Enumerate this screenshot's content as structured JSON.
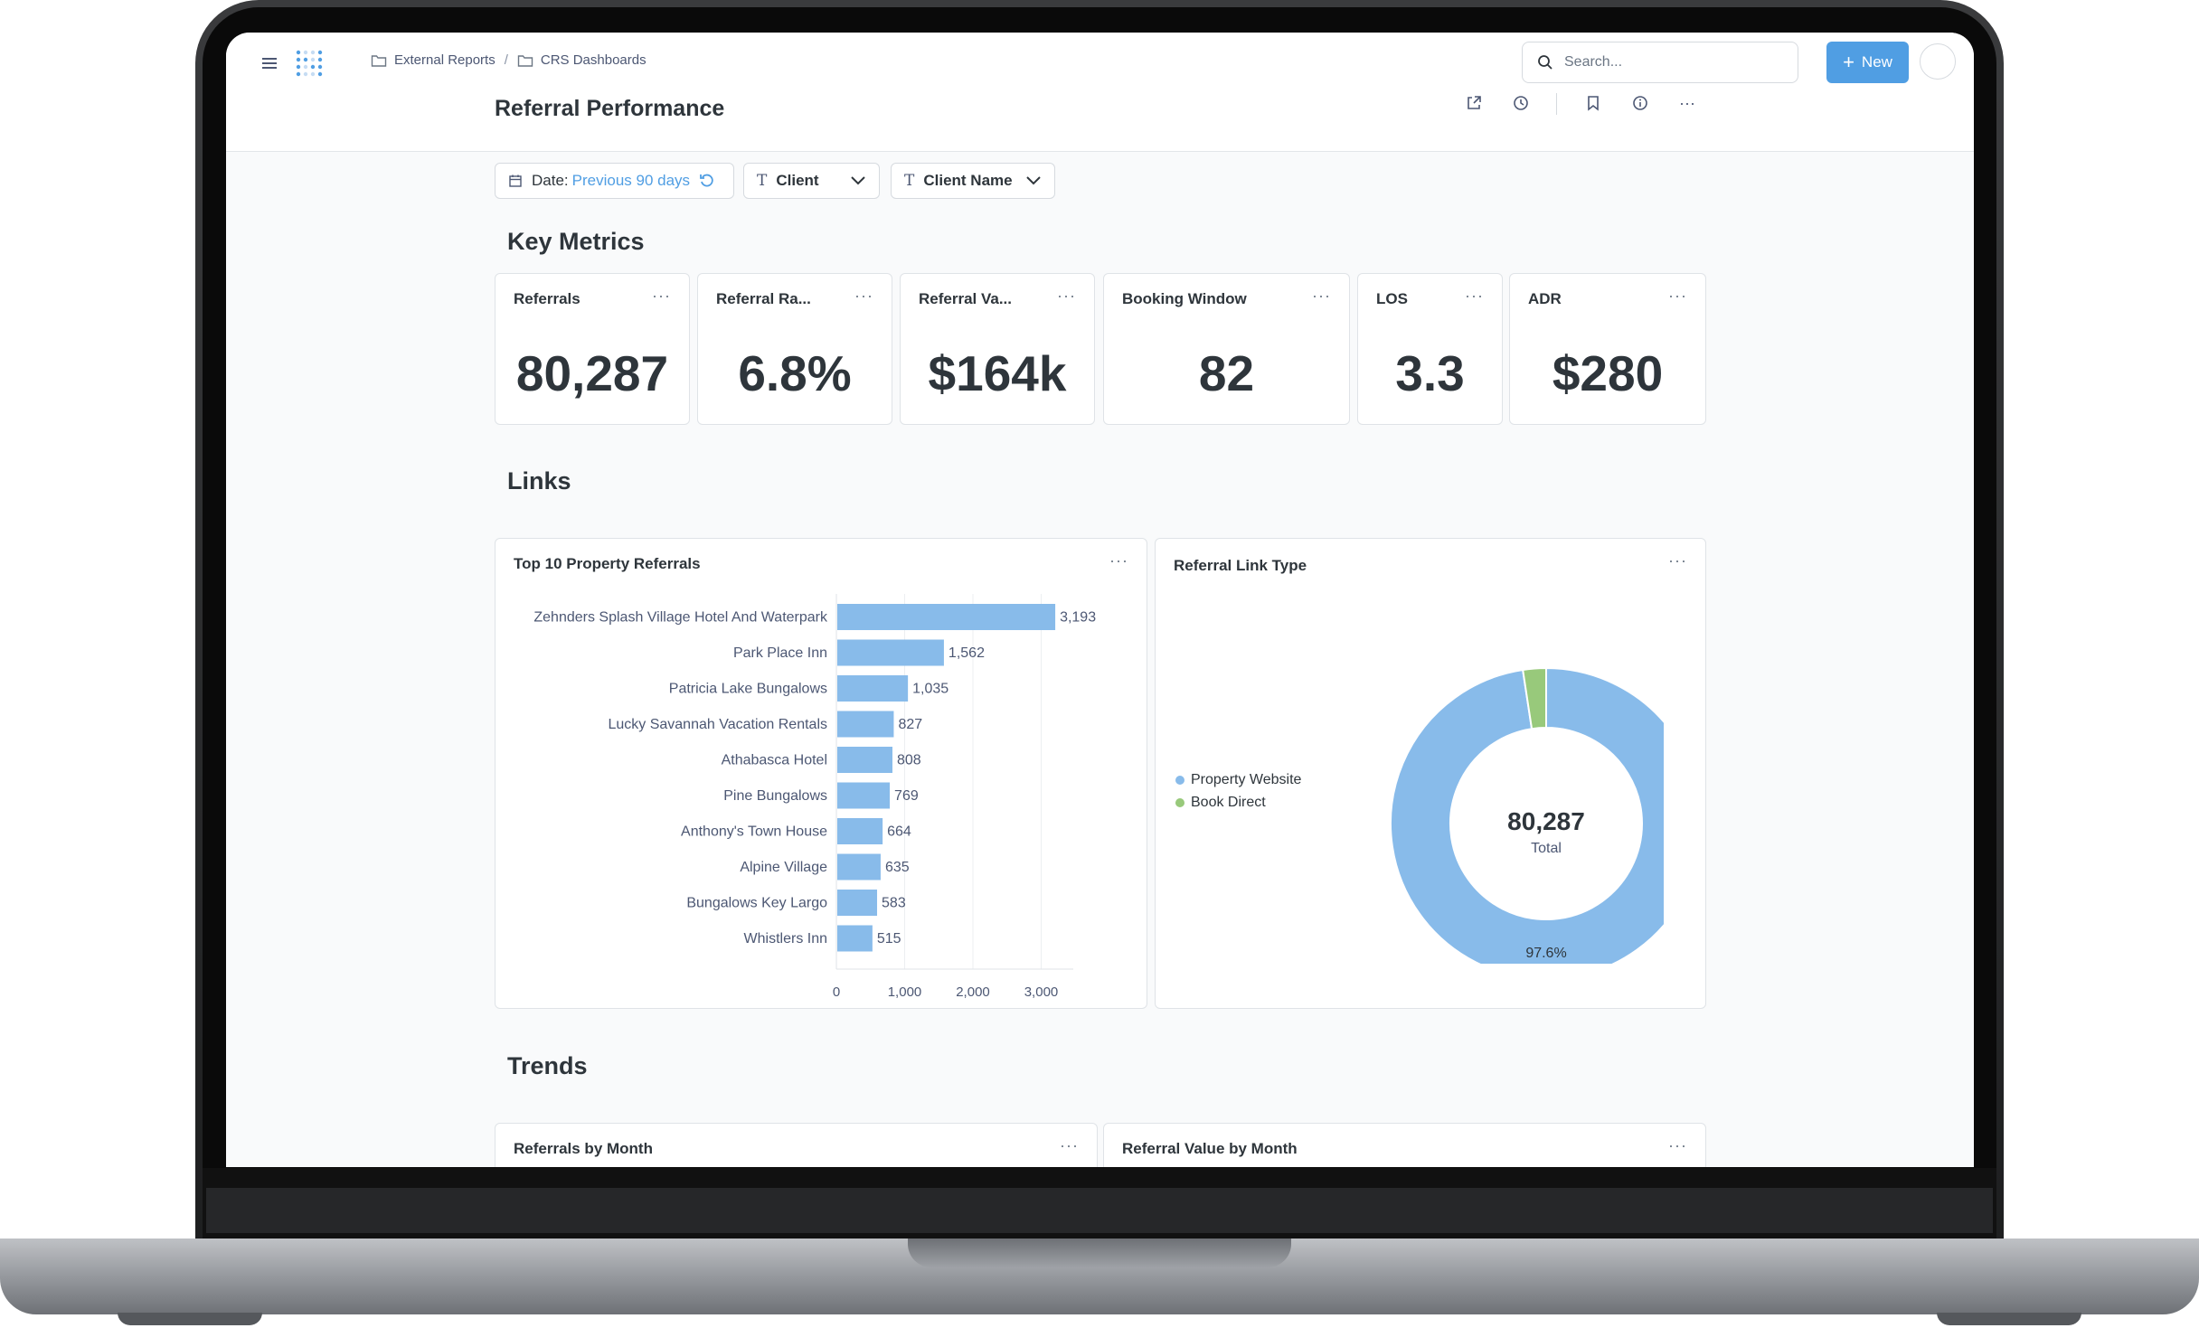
{
  "app": {
    "breadcrumb": [
      "External Reports",
      "CRS Dashboards"
    ],
    "breadcrumb_separator": "/",
    "page_title": "Referral Performance",
    "search_placeholder": "Search...",
    "new_label": "New",
    "menu_glyph": "···"
  },
  "filters": {
    "date_label": "Date:",
    "date_value": "Previous 90 days",
    "client_label": "Client",
    "client_name_label": "Client Name"
  },
  "sections": {
    "key_metrics": "Key Metrics",
    "links": "Links",
    "trends": "Trends"
  },
  "metrics": [
    {
      "title": "Referrals",
      "value": "80,287"
    },
    {
      "title": "Referral Ra...",
      "value": "6.8%"
    },
    {
      "title": "Referral Va...",
      "value": "$164k"
    },
    {
      "title": "Booking Window",
      "value": "82"
    },
    {
      "title": "LOS",
      "value": "3.3"
    },
    {
      "title": "ADR",
      "value": "$280"
    }
  ],
  "cards": {
    "top_referrals_title": "Top 10 Property Referrals",
    "link_type_title": "Referral Link Type",
    "referrals_by_month_title": "Referrals by Month",
    "referral_value_by_month_title": "Referral Value by Month"
  },
  "colors": {
    "accent": "#509ee3",
    "bar": "#88bbea",
    "donut_primary": "#88bbea",
    "donut_secondary": "#98c97b"
  },
  "chart_data": [
    {
      "type": "bar",
      "orientation": "horizontal",
      "title": "Top 10 Property Referrals",
      "categories": [
        "Zehnders Splash Village Hotel And Waterpark",
        "Park Place Inn",
        "Patricia Lake Bungalows",
        "Lucky Savannah Vacation Rentals",
        "Athabasca Hotel",
        "Pine Bungalows",
        "Anthony's Town House",
        "Alpine Village",
        "Bungalows Key Largo",
        "Whistlers Inn"
      ],
      "values": [
        3193,
        1562,
        1035,
        827,
        808,
        769,
        664,
        635,
        583,
        515
      ],
      "value_labels": [
        "3,193",
        "1,562",
        "1,035",
        "827",
        "808",
        "769",
        "664",
        "635",
        "583",
        "515"
      ],
      "xticks": [
        0,
        1000,
        2000,
        3000
      ],
      "xtick_labels": [
        "0",
        "1,000",
        "2,000",
        "3,000"
      ],
      "xlim": [
        0,
        3500
      ],
      "grid": true
    },
    {
      "type": "pie",
      "style": "donut",
      "title": "Referral Link Type",
      "labels": [
        "Property Website",
        "Book Direct"
      ],
      "values": [
        97.6,
        2.4
      ],
      "center_value": "80,287",
      "center_label": "Total",
      "slice_label": "97.6%",
      "legend": "left"
    }
  ]
}
